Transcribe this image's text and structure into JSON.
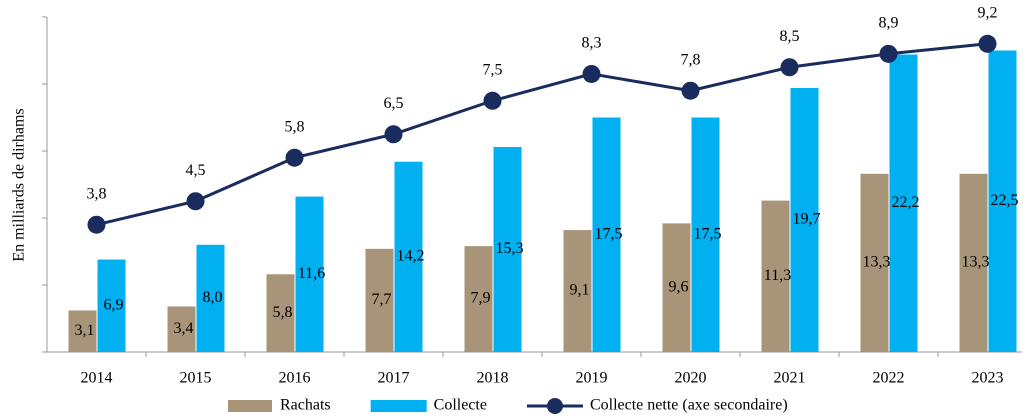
{
  "chart_data": {
    "type": "bar_line",
    "y_axis_label": "En milliards de dirhams",
    "categories": [
      "2014",
      "2015",
      "2016",
      "2017",
      "2018",
      "2019",
      "2020",
      "2021",
      "2022",
      "2023"
    ],
    "ylim": [
      0,
      25
    ],
    "yticks": [
      0,
      5,
      10,
      15,
      20,
      25
    ],
    "y2lim": [
      0,
      10
    ],
    "legend": "bottom",
    "series": [
      {
        "name": "Rachats",
        "type": "bar",
        "color": "#a89479",
        "values": [
          3.1,
          3.4,
          5.8,
          7.7,
          7.9,
          9.1,
          9.6,
          11.3,
          13.3,
          13.3
        ],
        "value_labels": [
          "3,1",
          "3,4",
          "5,8",
          "7,7",
          "7,9",
          "9,1",
          "9,6",
          "11,3",
          "13,3",
          "13,3"
        ]
      },
      {
        "name": "Collecte",
        "type": "bar",
        "color": "#00b0f0",
        "values": [
          6.9,
          8.0,
          11.6,
          14.2,
          15.3,
          17.5,
          17.5,
          19.7,
          22.2,
          22.5
        ],
        "value_labels": [
          "6,9",
          "8,0",
          "11,6",
          "14,2",
          "15,3",
          "17,5",
          "17,5",
          "19,7",
          "22,2",
          "22,5"
        ]
      },
      {
        "name": "Collecte nette (axe secondaire)",
        "type": "line",
        "axis": "y2",
        "color": "#1a2b5e",
        "values": [
          3.8,
          4.5,
          5.8,
          6.5,
          7.5,
          8.3,
          7.8,
          8.5,
          8.9,
          9.2
        ],
        "value_labels": [
          "3,8",
          "4,5",
          "5,8",
          "6,5",
          "7,5",
          "8,3",
          "7,8",
          "8,5",
          "8,9",
          "9,2"
        ]
      }
    ]
  }
}
